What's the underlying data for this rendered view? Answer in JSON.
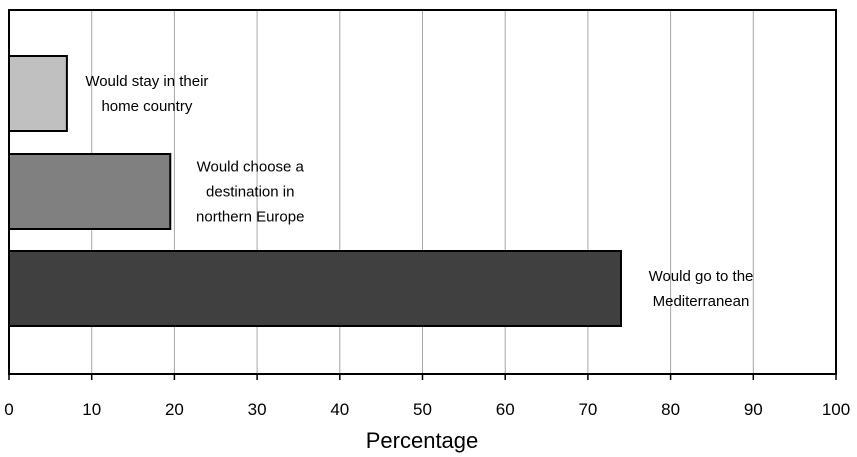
{
  "chart_data": {
    "type": "bar",
    "orientation": "horizontal",
    "xlabel": "Percentage",
    "ylabel": "",
    "xlim": [
      0,
      100
    ],
    "x_ticks": [
      0,
      10,
      20,
      30,
      40,
      50,
      60,
      70,
      80,
      90,
      100
    ],
    "grid": "vertical gridlines",
    "categories": [
      {
        "lines": [
          "Would stay in their",
          "home country"
        ],
        "value": 7,
        "color": "#c0c0c0"
      },
      {
        "lines": [
          "Would choose a",
          "destination in",
          "northern Europe"
        ],
        "value": 19.5,
        "color": "#808080"
      },
      {
        "lines": [
          "Would go to the",
          "Mediterranean"
        ],
        "value": 74,
        "color": "#404040"
      }
    ]
  }
}
